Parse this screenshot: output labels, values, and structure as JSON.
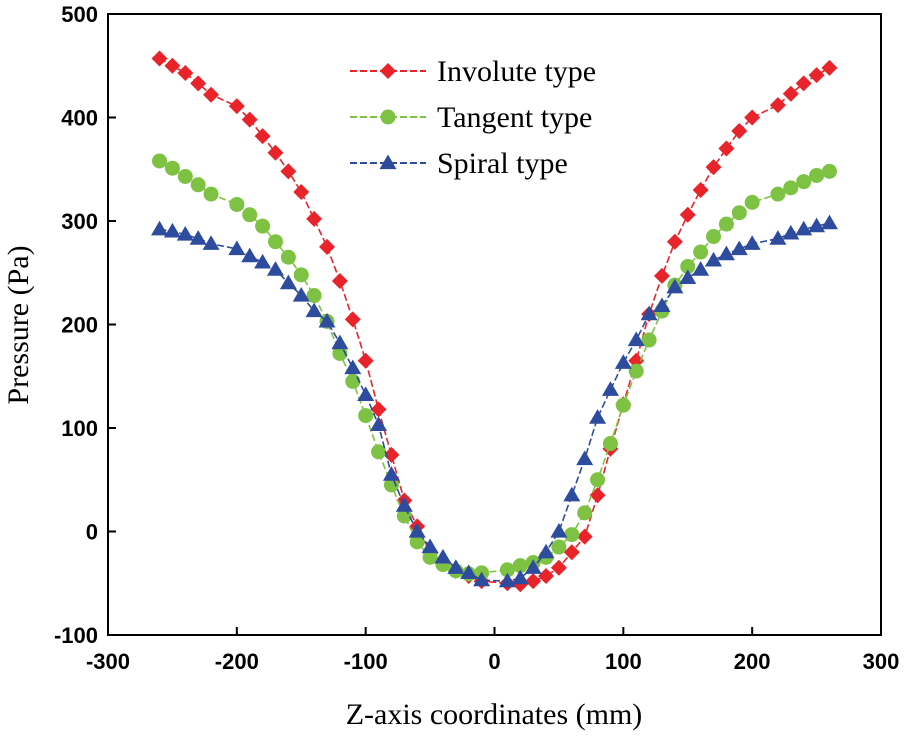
{
  "chart_data": {
    "type": "line",
    "title": "",
    "xlabel": "Z-axis coordinates (mm)",
    "ylabel": "Pressure (Pa)",
    "xlim": [
      -300,
      300
    ],
    "ylim": [
      -100,
      500
    ],
    "xticks": [
      -300,
      -200,
      -100,
      0,
      100,
      200,
      300
    ],
    "yticks": [
      -100,
      0,
      100,
      200,
      300,
      400,
      500
    ],
    "grid": false,
    "legend_position": "top-center",
    "series": [
      {
        "name": "Involute type",
        "color": "#e8232a",
        "marker": "diamond",
        "x": [
          -260,
          -250,
          -240,
          -230,
          -220,
          -200,
          -190,
          -180,
          -170,
          -160,
          -150,
          -140,
          -130,
          -120,
          -110,
          -100,
          -90,
          -80,
          -70,
          -60,
          -50,
          -40,
          -30,
          -20,
          -10,
          10,
          20,
          30,
          40,
          50,
          60,
          70,
          80,
          90,
          100,
          110,
          120,
          130,
          140,
          150,
          160,
          170,
          180,
          190,
          200,
          220,
          230,
          240,
          250,
          260
        ],
        "y": [
          457,
          450,
          443,
          433,
          422,
          411,
          398,
          382,
          366,
          348,
          328,
          302,
          275,
          242,
          205,
          165,
          118,
          74,
          30,
          5,
          -20,
          -30,
          -38,
          -43,
          -48,
          -50,
          -51,
          -48,
          -43,
          -35,
          -20,
          -5,
          35,
          80,
          123,
          165,
          210,
          247,
          280,
          306,
          330,
          352,
          370,
          387,
          400,
          412,
          423,
          433,
          441,
          448
        ]
      },
      {
        "name": "Tangent type",
        "color": "#7dc242",
        "marker": "circle",
        "x": [
          -260,
          -250,
          -240,
          -230,
          -220,
          -200,
          -190,
          -180,
          -170,
          -160,
          -150,
          -140,
          -130,
          -120,
          -110,
          -100,
          -90,
          -80,
          -70,
          -60,
          -50,
          -40,
          -30,
          -20,
          -10,
          10,
          20,
          30,
          40,
          50,
          60,
          70,
          80,
          90,
          100,
          110,
          120,
          130,
          140,
          150,
          160,
          170,
          180,
          190,
          200,
          220,
          230,
          240,
          250,
          260
        ],
        "y": [
          358,
          351,
          343,
          335,
          326,
          316,
          306,
          295,
          280,
          265,
          248,
          228,
          203,
          172,
          145,
          112,
          77,
          45,
          15,
          -10,
          -25,
          -32,
          -38,
          -41,
          -40,
          -37,
          -33,
          -30,
          -25,
          -15,
          -3,
          18,
          50,
          85,
          122,
          155,
          185,
          213,
          238,
          256,
          270,
          285,
          297,
          308,
          318,
          326,
          332,
          338,
          344,
          348
        ]
      },
      {
        "name": "Spiral type",
        "color": "#2e4c9e",
        "marker": "triangle",
        "x": [
          -260,
          -250,
          -240,
          -230,
          -220,
          -200,
          -190,
          -180,
          -170,
          -160,
          -150,
          -140,
          -130,
          -120,
          -110,
          -100,
          -90,
          -80,
          -70,
          -60,
          -50,
          -40,
          -30,
          -20,
          -10,
          10,
          20,
          30,
          40,
          50,
          60,
          70,
          80,
          90,
          100,
          110,
          120,
          130,
          140,
          150,
          160,
          170,
          180,
          190,
          200,
          220,
          230,
          240,
          250,
          260
        ],
        "y": [
          292,
          290,
          287,
          283,
          278,
          273,
          266,
          260,
          253,
          240,
          228,
          213,
          203,
          182,
          158,
          132,
          103,
          55,
          25,
          0,
          -15,
          -25,
          -35,
          -40,
          -47,
          -48,
          -45,
          -35,
          -20,
          0,
          35,
          70,
          110,
          137,
          163,
          185,
          210,
          218,
          236,
          245,
          253,
          262,
          268,
          273,
          278,
          283,
          288,
          292,
          295,
          298
        ]
      }
    ]
  }
}
